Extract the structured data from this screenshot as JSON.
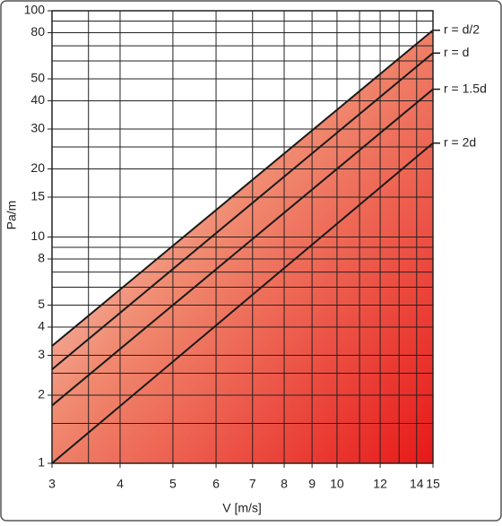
{
  "chart_data": {
    "type": "line",
    "log_x": true,
    "log_y": true,
    "grid": true,
    "x_label": "V [m/s]",
    "y_label": "Pa/m",
    "xlim": [
      3,
      15
    ],
    "ylim": [
      1,
      100
    ],
    "xticks": [
      3,
      4,
      5,
      6,
      7,
      8,
      9,
      10,
      12,
      14,
      15
    ],
    "yticks": [
      1,
      2,
      3,
      4,
      5,
      8,
      10,
      15,
      20,
      30,
      40,
      50,
      80,
      100
    ],
    "x_minor_grid": [
      3.5,
      11,
      13
    ],
    "y_minor_grid": [
      1.5,
      2.5,
      6,
      7,
      9,
      25,
      60,
      70,
      90
    ],
    "series": [
      {
        "name": "r = d/2",
        "color": "#1a1a1a",
        "x": [
          3,
          15
        ],
        "values": [
          3.3,
          82
        ]
      },
      {
        "name": "r = d",
        "color": "#1a1a1a",
        "x": [
          3,
          15
        ],
        "values": [
          2.6,
          65
        ]
      },
      {
        "name": "r = 1.5d",
        "color": "#1a1a1a",
        "x": [
          3,
          15
        ],
        "values": [
          1.8,
          45
        ]
      },
      {
        "name": "r = 2d",
        "color": "#1a1a1a",
        "x": [
          3,
          15
        ],
        "values": [
          1,
          26
        ]
      }
    ]
  }
}
